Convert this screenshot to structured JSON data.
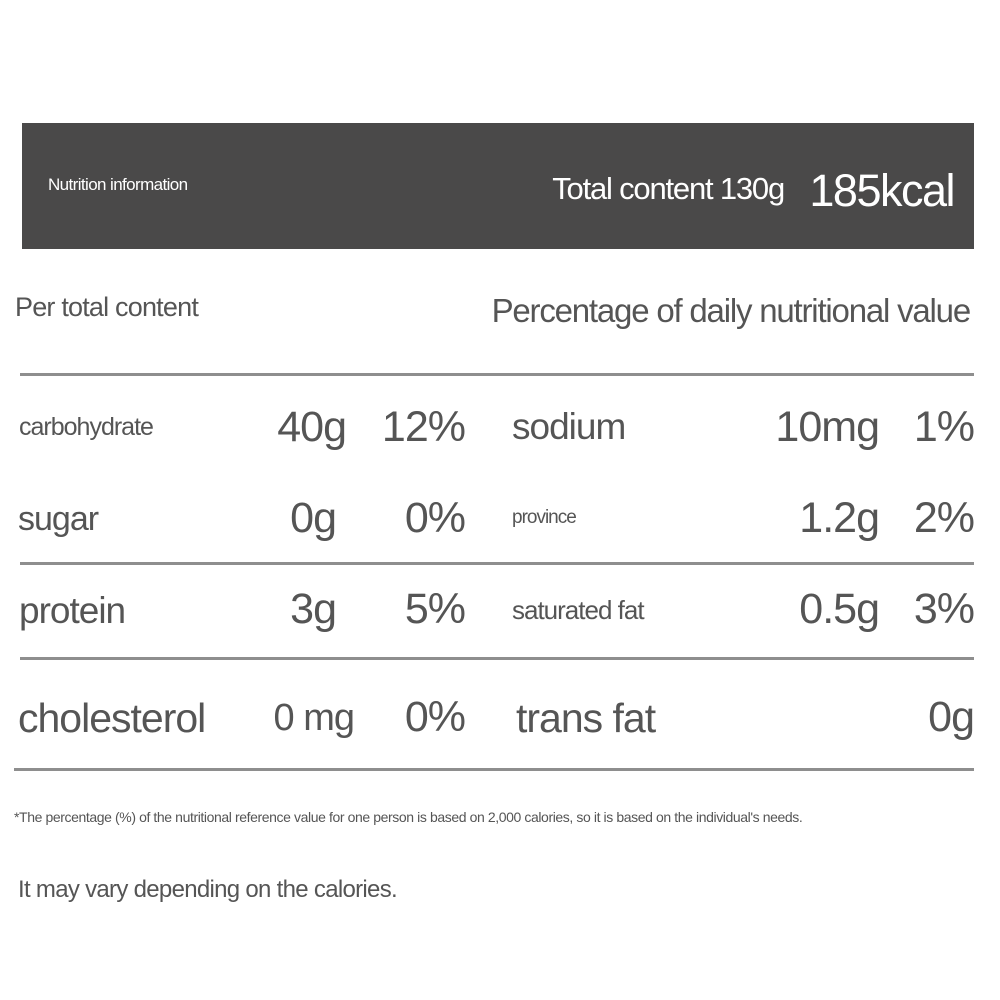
{
  "header": {
    "title": "Nutrition information",
    "total_content": "Total content 130g",
    "calories": "185kcal"
  },
  "subheader": {
    "left": "Per total content",
    "right": "Percentage of daily nutritional value"
  },
  "rows": [
    {
      "left": {
        "label": "carbohydrate",
        "amount": "40g",
        "percent": "12%"
      },
      "right": {
        "label": "sodium",
        "amount": "10mg",
        "percent": "1%"
      }
    },
    {
      "left": {
        "label": "sugar",
        "amount": "0g",
        "percent": "0%"
      },
      "right": {
        "label": "province",
        "amount": "1.2g",
        "percent": "2%"
      }
    },
    {
      "left": {
        "label": "protein",
        "amount": "3g",
        "percent": "5%"
      },
      "right": {
        "label": "saturated fat",
        "amount": "0.5g",
        "percent": "3%"
      }
    },
    {
      "left": {
        "label": "cholesterol",
        "amount": "0 mg",
        "percent": "0%"
      },
      "right": {
        "label": "trans fat",
        "amount": "0g",
        "percent": ""
      }
    }
  ],
  "footnote": {
    "line1": "*The percentage (%) of the nutritional reference value for one person is based on 2,000 calories, so it is based on the individual's needs.",
    "line2": "It may vary depending on the calories."
  },
  "colors": {
    "header_background": "#4a4949",
    "text": "#555555",
    "rules": "#8e8e8e"
  }
}
